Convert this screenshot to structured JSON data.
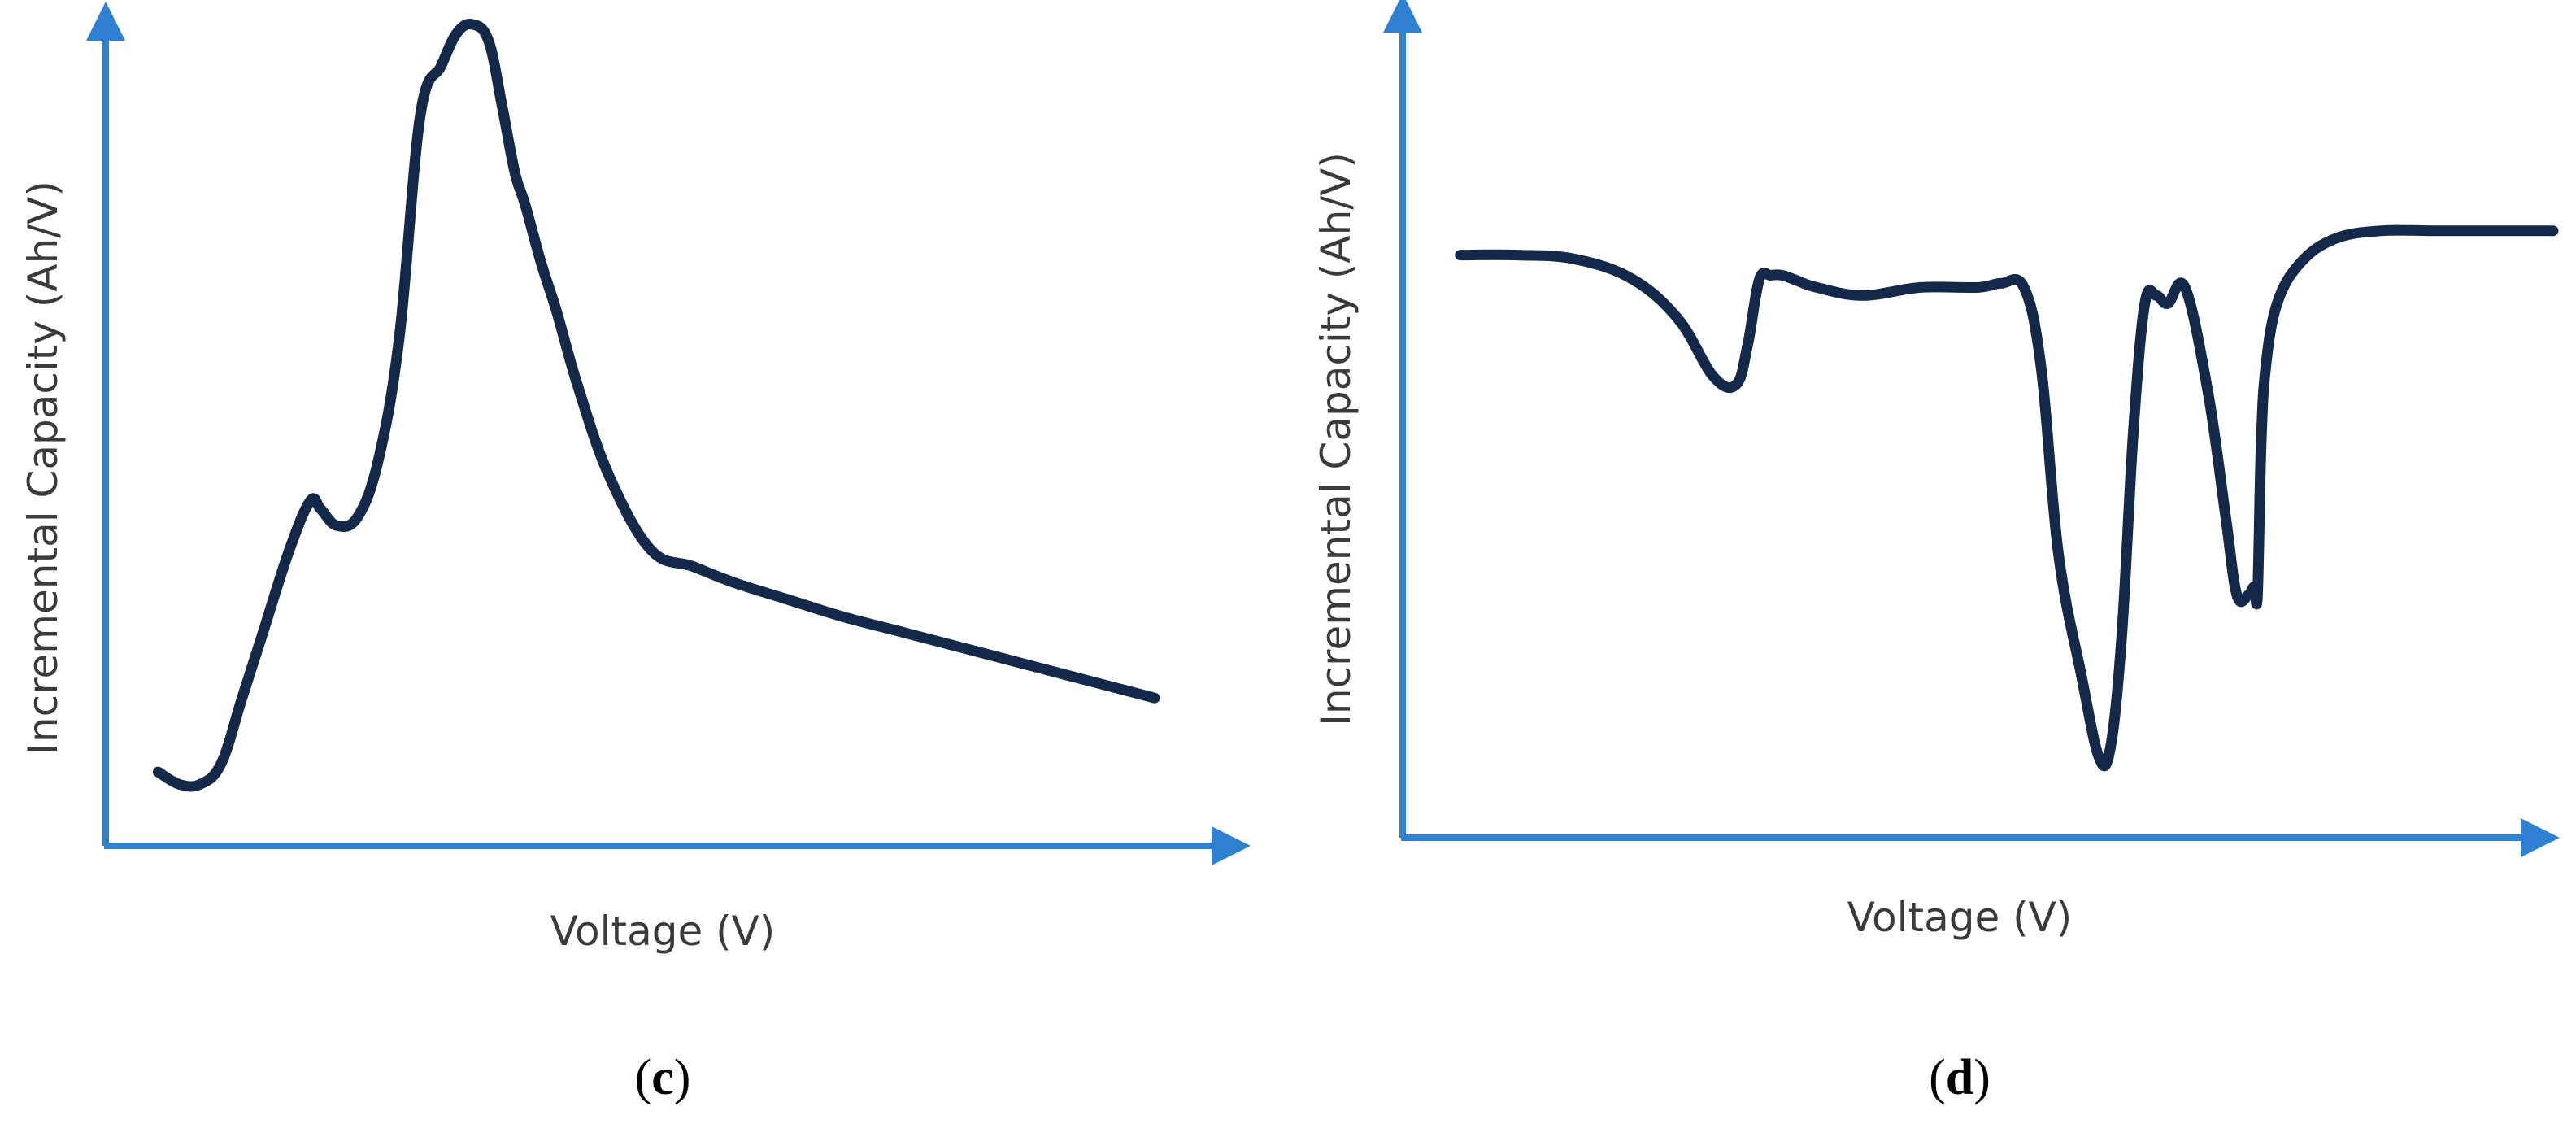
{
  "colors": {
    "axis": "#2f80d1",
    "curve": "#14294a",
    "text": "#3a3a3a",
    "background": "#ffffff"
  },
  "chart_data": [
    {
      "type": "line",
      "panel": "c",
      "title": "",
      "xlabel": "Voltage (V)",
      "ylabel": "Incremental Capacity (Ah/V)",
      "xlim": [
        0,
        100
      ],
      "ylim": [
        0,
        100
      ],
      "ticks": false,
      "grid": false,
      "legend": "none",
      "series": [
        {
          "x": [
            5,
            7,
            9,
            11,
            13,
            15,
            17.5,
            19.5,
            20.5,
            22,
            24,
            26,
            28,
            30,
            32,
            33.5,
            35,
            36.5,
            37.8,
            39,
            40,
            41.5,
            43,
            45,
            48,
            52,
            56,
            60,
            65,
            70,
            76,
            82,
            88,
            94,
            100
          ],
          "y": [
            9,
            7.5,
            7.5,
            10,
            18,
            26,
            36,
            42,
            41,
            39,
            40,
            47,
            62,
            89,
            95,
            99,
            100,
            98,
            90,
            82,
            78,
            71,
            65,
            56,
            45,
            36,
            34,
            32,
            30,
            28,
            26,
            24,
            22,
            20,
            18
          ]
        }
      ]
    },
    {
      "type": "line",
      "panel": "d",
      "title": "",
      "xlabel": "Voltage (V)",
      "ylabel": "Incremental Capacity (Ah/V)",
      "xlim": [
        0,
        100
      ],
      "ylim": [
        0,
        100
      ],
      "ticks": false,
      "grid": false,
      "legend": "none",
      "series": [
        {
          "x": [
            5,
            10,
            15,
            20,
            24,
            27,
            29,
            30,
            31,
            32,
            33,
            34,
            36,
            40,
            45,
            50,
            52,
            54,
            55.5,
            57,
            59,
            60.5,
            61.5,
            62.5,
            63.5,
            64.5,
            65.5,
            66.5,
            68,
            70,
            71.5,
            72.5,
            73.5,
            74,
            74.3,
            74.6,
            75,
            76,
            78,
            81,
            85,
            90,
            95,
            100
          ],
          "y": [
            72,
            72,
            71.5,
            69,
            64,
            57,
            56,
            61,
            69,
            69.5,
            69.5,
            69,
            68,
            67,
            68,
            68,
            68.5,
            68,
            58,
            35,
            20,
            10,
            11,
            25,
            50,
            66,
            67,
            66,
            68,
            55,
            40,
            30,
            30,
            31,
            30,
            48,
            58,
            66,
            71,
            74,
            75,
            75,
            75,
            75
          ]
        }
      ]
    }
  ],
  "panels": [
    {
      "label": "c"
    },
    {
      "label": "d"
    }
  ]
}
